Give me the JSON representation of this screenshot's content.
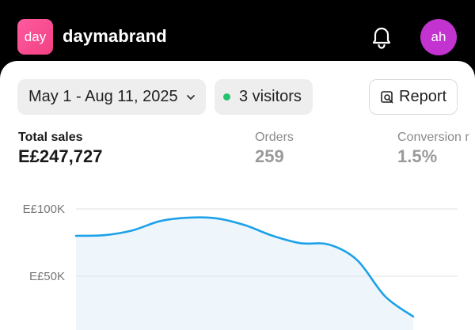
{
  "header": {
    "logo_text": "day",
    "store_name": "daymabrand",
    "avatar_initials": "ah",
    "bell_icon": "bell-icon"
  },
  "filters": {
    "date_range": "May 1 - Aug 11, 2025",
    "visitors": "3 visitors",
    "report_label": "Report"
  },
  "metrics": [
    {
      "label": "Total sales",
      "value": "E£247,727"
    },
    {
      "label": "Orders",
      "value": "259"
    },
    {
      "label": "Conversion r",
      "value": "1.5%"
    }
  ],
  "chart_data": {
    "type": "area",
    "y_tick_labels": [
      "E£100K",
      "E£50K"
    ],
    "y_ticks": [
      100000,
      50000
    ],
    "series": [
      {
        "values": [
          80000,
          80500,
          84000,
          91000,
          93500,
          93000,
          88000,
          80000,
          74500,
          73500,
          62000,
          35000,
          20000
        ]
      }
    ],
    "colors": {
      "line": "#1da1e8",
      "fill": "#eef6fb"
    }
  }
}
